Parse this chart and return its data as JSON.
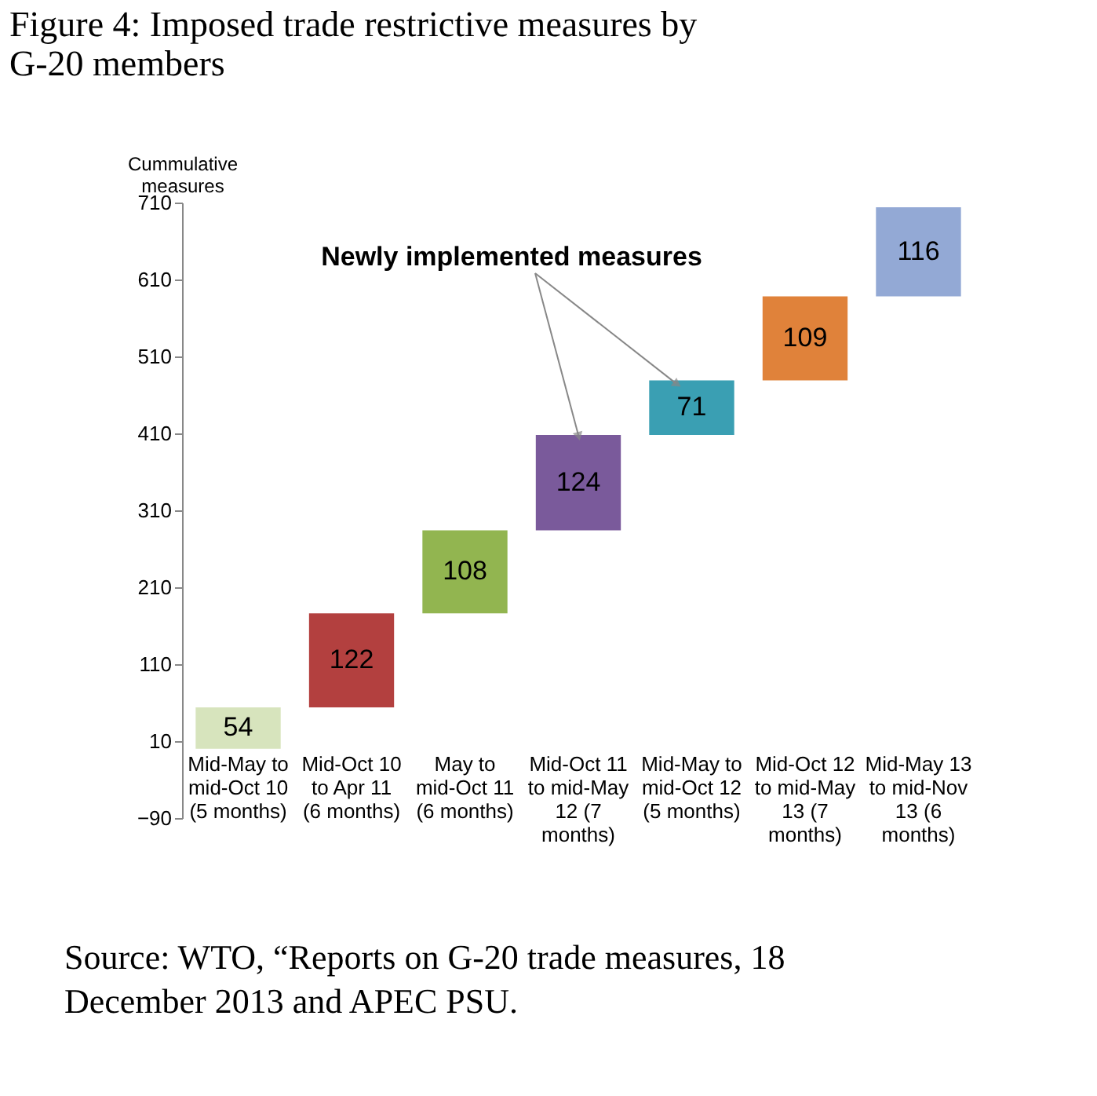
{
  "chart_data": {
    "type": "bar",
    "title": "Figure 4: Imposed trade restrictive measures by G-20 members",
    "ylabel": "Cummulative measures",
    "categories": [
      "Mid-May to mid-Oct 10 (5 months)",
      "Mid-Oct 10 to Apr 11 (6 months)",
      "May to mid-Oct 11 (6 months)",
      "Mid-Oct 11 to mid-May 12 (7 months)",
      "Mid-May to mid-Oct 12 (5 months)",
      "Mid-Oct 12 to mid-May 13 (7 months)",
      "Mid-May 13 to mid-Nov 13 (6 months)"
    ],
    "values": [
      54,
      122,
      108,
      124,
      71,
      109,
      116
    ],
    "base": [
      0,
      54,
      176,
      284,
      408,
      479,
      588
    ],
    "colors": [
      "#d7e4bd",
      "#b3403f",
      "#92b550",
      "#7a5a9b",
      "#3a9fb3",
      "#e0823a",
      "#93a9d5"
    ],
    "data_labels": true,
    "ylim": [
      -90,
      710
    ],
    "yticks": [
      -90,
      10,
      110,
      210,
      310,
      410,
      510,
      610,
      710
    ],
    "grid": false,
    "annotations": [
      {
        "text": "Newly implemented measures",
        "x": "Mid-Oct 11 to mid-May 12 (7 months)",
        "y": 408
      },
      "Source: WTO, “Reports on G-20 trade measures, 18 December 2013 and APEC PSU."
    ]
  }
}
